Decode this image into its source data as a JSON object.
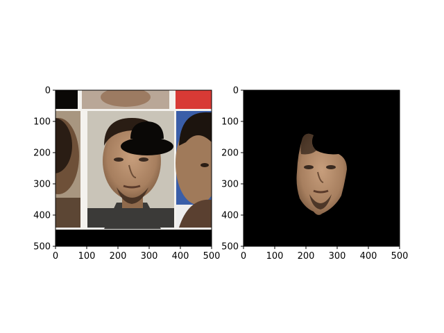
{
  "chart_data": [
    {
      "type": "image",
      "xlim": [
        0,
        500
      ],
      "ylim": [
        500,
        0
      ],
      "xticks": [
        0,
        100,
        200,
        300,
        400,
        500
      ],
      "yticks": [
        0,
        100,
        200,
        300,
        400,
        500
      ],
      "xtick_labels": [
        "0",
        "100",
        "200",
        "300",
        "400",
        "500"
      ],
      "ytick_labels": [
        "0",
        "100",
        "200",
        "300",
        "400",
        "500"
      ],
      "grid": false,
      "content": "photo collage of mugshot with black hat-shaped mask"
    },
    {
      "type": "image",
      "xlim": [
        0,
        500
      ],
      "ylim": [
        500,
        0
      ],
      "xticks": [
        0,
        100,
        200,
        300,
        400,
        500
      ],
      "yticks": [
        0,
        100,
        200,
        300,
        400,
        500
      ],
      "xtick_labels": [
        "0",
        "100",
        "200",
        "300",
        "400",
        "500"
      ],
      "ytick_labels": [
        "0",
        "100",
        "200",
        "300",
        "400",
        "500"
      ],
      "grid": false,
      "content": "segmented face region on black background"
    }
  ],
  "colors": {
    "background": "#000000",
    "skin": "#b58c6a",
    "hair": "#2a1d14",
    "photo_bg": "#c9c4b8",
    "left_photo_bg": "#a89680",
    "right_photo_bg": "#3a5ea8",
    "red_patch": "#d83a35",
    "shirt": "#3b3a38"
  }
}
